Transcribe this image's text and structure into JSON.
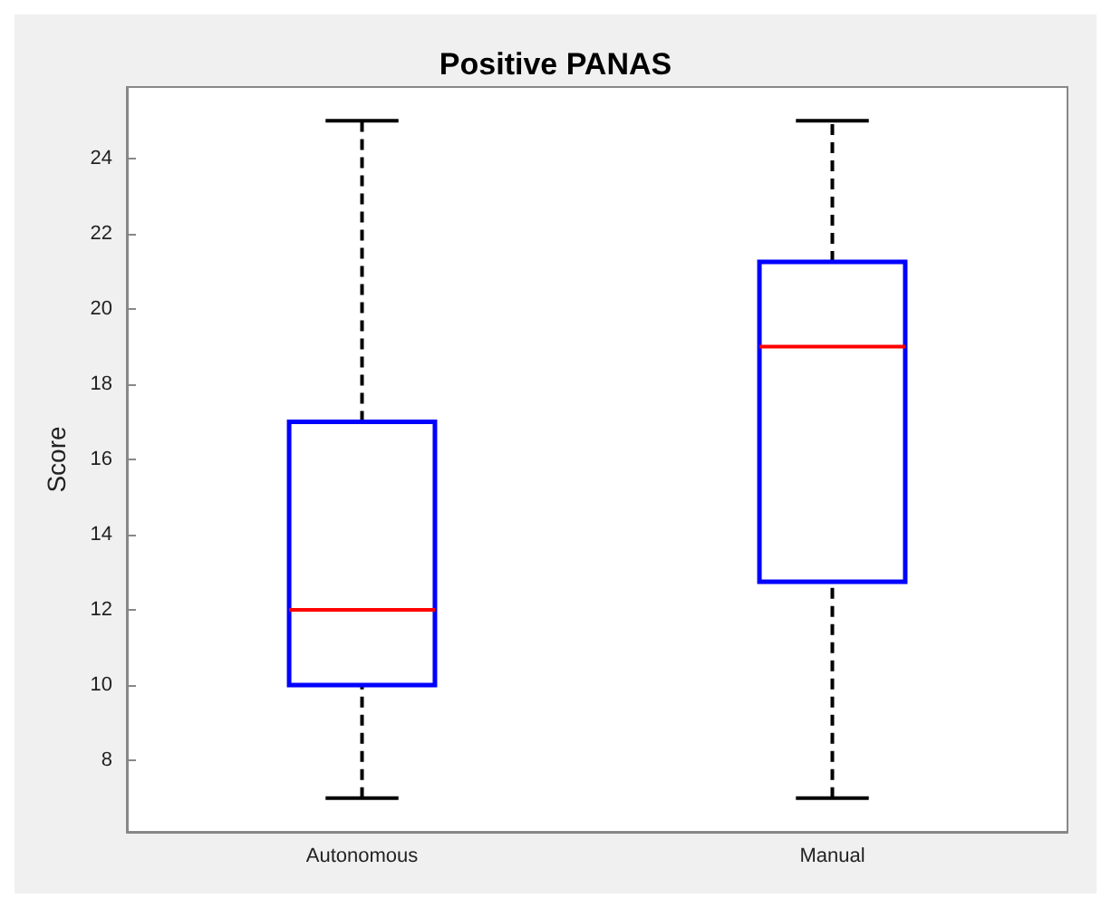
{
  "chart_data": {
    "type": "box",
    "title": "Positive PANAS",
    "ylabel": "Score",
    "categories": [
      "Autonomous",
      "Manual"
    ],
    "series": [
      {
        "color": "#0000ff",
        "boxes": [
          {
            "low": 7,
            "q1": 10,
            "median": 12,
            "q3": 17,
            "high": 25
          },
          {
            "low": 7,
            "q1": 12.75,
            "median": 19,
            "q3": 21.25,
            "high": 25
          }
        ]
      }
    ],
    "ylim": [
      6.1,
      25.9
    ],
    "yticks": [
      8,
      10,
      12,
      14,
      16,
      18,
      20,
      22,
      24
    ],
    "grid": false,
    "line_style": "dashed"
  }
}
